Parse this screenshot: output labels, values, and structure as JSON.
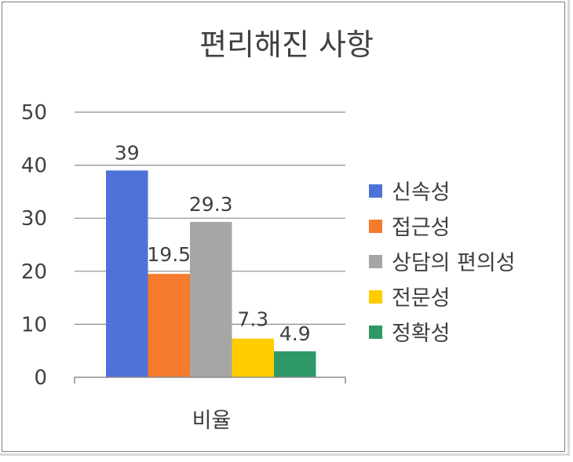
{
  "chart_data": {
    "type": "bar",
    "title": "편리해진 사항",
    "xlabel": "",
    "ylabel": "",
    "categories": [
      "비율"
    ],
    "ylim": [
      0,
      50
    ],
    "yticks": [
      "0",
      "10",
      "20",
      "30",
      "40",
      "50"
    ],
    "grid": true,
    "legend_position": "right",
    "series": [
      {
        "name": "신속성",
        "values": [
          39
        ],
        "label": "39",
        "color": "#4f72d9"
      },
      {
        "name": "접근성",
        "values": [
          19.5
        ],
        "label": "19.5",
        "color": "#f47a2c"
      },
      {
        "name": "상담의 편의성",
        "values": [
          29.3
        ],
        "label": "29.3",
        "color": "#a6a6a6"
      },
      {
        "name": "전문성",
        "values": [
          7.3
        ],
        "label": "7.3",
        "color": "#ffcc00"
      },
      {
        "name": "정확성",
        "values": [
          4.9
        ],
        "label": "4.9",
        "color": "#2e9966"
      }
    ]
  }
}
